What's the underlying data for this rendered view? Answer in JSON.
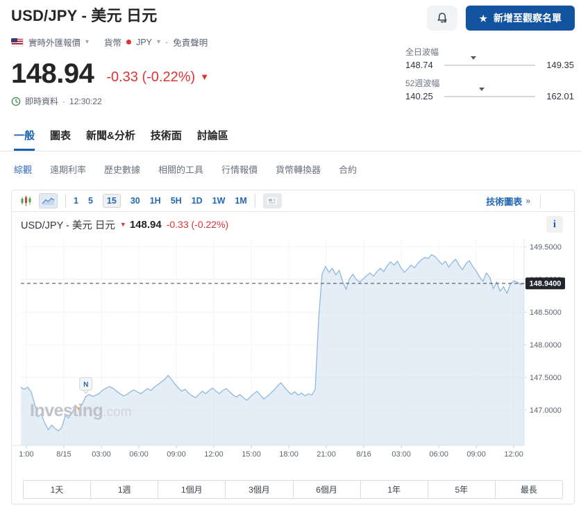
{
  "header": {
    "title": "USD/JPY - 美元 日元",
    "watchlist_button": "新增至觀察名單",
    "watchlist_star": "★",
    "breadcrumb": {
      "market": "實時外匯報價",
      "caret": "▾",
      "category": "貨幣",
      "currency": "JPY",
      "separator": "·",
      "disclaimer": "免責聲明"
    }
  },
  "quote": {
    "price": "148.94",
    "change": "-0.33 (-0.22%)",
    "change_arrow": "▼",
    "status_label": "即時資料",
    "separator": "·",
    "time": "12:30:22",
    "negative_color": "#dd3333"
  },
  "stats": {
    "day_range": {
      "label": "全日波幅",
      "low": "148.74",
      "high": "149.35",
      "marker_pct": 32
    },
    "week52_range": {
      "label": "52週波幅",
      "low": "140.25",
      "high": "162.01",
      "marker_pct": 41
    }
  },
  "tabs": [
    {
      "label": "一般",
      "active": true
    },
    {
      "label": "圖表",
      "active": false
    },
    {
      "label": "新聞&分析",
      "active": false
    },
    {
      "label": "技術面",
      "active": false
    },
    {
      "label": "討論區",
      "active": false
    }
  ],
  "subtabs": [
    {
      "label": "綜觀",
      "active": true
    },
    {
      "label": "遠期利率",
      "active": false
    },
    {
      "label": "歷史數據",
      "active": false
    },
    {
      "label": "相關的工具",
      "active": false
    },
    {
      "label": "行情報價",
      "active": false
    },
    {
      "label": "貨幣轉換器",
      "active": false
    },
    {
      "label": "合約",
      "active": false
    }
  ],
  "toolbar": {
    "intervals": [
      "1",
      "5",
      "15",
      "30",
      "1H",
      "5H",
      "1D",
      "1W",
      "1M"
    ],
    "selected_interval": "15",
    "tech_chart_link": "技術圖表",
    "tech_chart_chevrons": "»"
  },
  "chart_header": {
    "title": "USD/JPY - 美元 日元",
    "down_arrow": "▼",
    "price": "148.94",
    "change": "-0.33 (-0.22%)",
    "info_icon": "i"
  },
  "watermark": {
    "main": "Investing",
    "suffix": ".com"
  },
  "chart_data": {
    "type": "area",
    "title": "USD/JPY - 美元 日元",
    "interval_minutes": 15,
    "line_color": "#8fb8de",
    "fill_color": "#cfe0ef",
    "last": 148.94,
    "last_label": "148.9400",
    "ylim": [
      146.46,
      149.63
    ],
    "y_ticks": [
      147.0,
      147.5,
      148.0,
      148.5,
      149.0,
      149.5
    ],
    "x_ticks": [
      "1:00",
      "8/15",
      "03:00",
      "06:00",
      "09:00",
      "12:00",
      "15:00",
      "18:00",
      "21:00",
      "8/16",
      "03:00",
      "06:00",
      "09:00",
      "12:00"
    ],
    "news_marker_label": "N",
    "news_marker_index": 19,
    "event_marker_index": 17,
    "values": [
      147.35,
      147.32,
      147.35,
      147.28,
      147.1,
      146.9,
      146.94,
      146.8,
      146.7,
      146.77,
      146.72,
      146.68,
      146.74,
      146.92,
      146.88,
      146.96,
      147.07,
      147.02,
      147.1,
      147.21,
      147.24,
      147.21,
      147.23,
      147.26,
      147.31,
      147.34,
      147.36,
      147.33,
      147.29,
      147.25,
      147.22,
      147.24,
      147.28,
      147.31,
      147.28,
      147.25,
      147.29,
      147.33,
      147.3,
      147.35,
      147.39,
      147.43,
      147.47,
      147.53,
      147.47,
      147.4,
      147.34,
      147.29,
      147.32,
      147.26,
      147.22,
      147.19,
      147.24,
      147.29,
      147.25,
      147.3,
      147.34,
      147.29,
      147.25,
      147.3,
      147.33,
      147.28,
      147.23,
      147.2,
      147.24,
      147.19,
      147.15,
      147.2,
      147.25,
      147.29,
      147.23,
      147.17,
      147.21,
      147.26,
      147.31,
      147.37,
      147.42,
      147.35,
      147.29,
      147.24,
      147.28,
      147.23,
      147.26,
      147.22,
      147.25,
      147.23,
      147.32,
      148.4,
      149.08,
      149.2,
      149.11,
      149.17,
      149.07,
      149.14,
      148.97,
      148.85,
      149.01,
      149.08,
      149.0,
      148.96,
      149.01,
      149.06,
      149.1,
      149.05,
      149.12,
      149.17,
      149.12,
      149.21,
      149.27,
      149.22,
      149.28,
      149.18,
      149.11,
      149.16,
      149.22,
      149.18,
      149.25,
      149.3,
      149.34,
      149.32,
      149.38,
      149.35,
      149.29,
      149.23,
      149.28,
      149.19,
      149.26,
      149.31,
      149.22,
      149.15,
      149.24,
      149.29,
      149.2,
      149.13,
      149.04,
      148.97,
      149.1,
      149.03,
      148.86,
      148.96,
      148.82,
      148.89,
      148.79,
      148.93,
      148.98,
      148.96,
      148.92,
      148.94
    ]
  },
  "range_buttons": [
    "1天",
    "1週",
    "1個月",
    "3個月",
    "6個月",
    "1年",
    "5年",
    "最長"
  ]
}
